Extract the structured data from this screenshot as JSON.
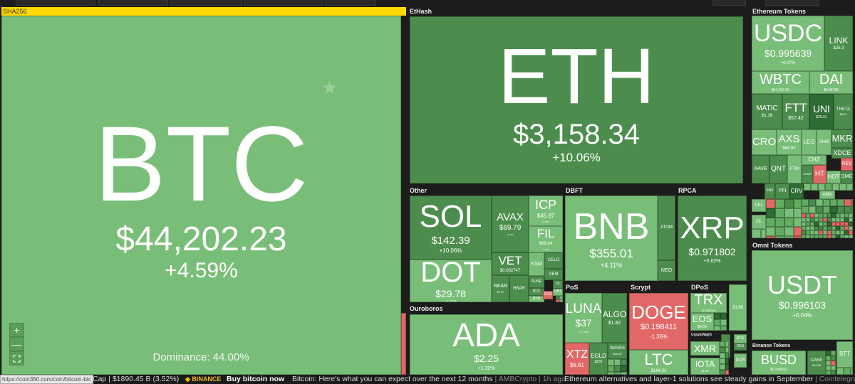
{
  "groups": {
    "sha256": "SHA256",
    "ethash": "EtHash",
    "other": "Other",
    "ouroboros": "Ouroboros",
    "dbft": "DBFT",
    "rpca": "RPCA",
    "pos": "PoS",
    "scrypt": "Scrypt",
    "dpos": "DPoS",
    "cryptonight": "CryptoNight",
    "ethereum_tokens": "Ethereum Tokens",
    "omni_tokens": "Omni Tokens",
    "binance_tokens": "Binance Tokens"
  },
  "colors": {
    "light": "#79be78",
    "mid": "#63ad62",
    "dark": "#4c8d4d",
    "darker": "#2f6b34",
    "red": "#e26868",
    "highlight": "#ffd900"
  },
  "tiles": [
    {
      "id": "btc",
      "symbol": "BTC",
      "price": "$44,202.23",
      "change": "+4.59%",
      "color": "light"
    },
    {
      "id": "eth",
      "symbol": "ETH",
      "price": "$3,158.34",
      "change": "+10.06%",
      "color": "dark"
    },
    {
      "id": "sol",
      "symbol": "SOL",
      "price": "$142.39",
      "change": "+10.06%",
      "color": "dark"
    },
    {
      "id": "dot",
      "symbol": "DOT",
      "price": "$29.78",
      "change": "+4.01%",
      "color": "light"
    },
    {
      "id": "avax",
      "symbol": "AVAX",
      "price": "$69.79",
      "change": "+6.76%",
      "color": "dark"
    },
    {
      "id": "icp",
      "symbol": "ICP",
      "price": "$45.97",
      "change": "+4.95%",
      "color": "light"
    },
    {
      "id": "fil",
      "symbol": "FIL",
      "price": "$68.64",
      "change": "+4.03%",
      "color": "light"
    },
    {
      "id": "vet",
      "symbol": "VET",
      "price": "$0.092747",
      "change": "",
      "color": "dark"
    },
    {
      "id": "near",
      "symbol": "NEAR",
      "price": "$7.67",
      "change": "",
      "color": "dark"
    },
    {
      "id": "hbar",
      "symbol": "HBAR",
      "price": "",
      "change": "",
      "color": "dark"
    },
    {
      "id": "ksm",
      "symbol": "KSM",
      "price": "",
      "change": "",
      "color": "light"
    },
    {
      "id": "celo",
      "symbol": "CELO",
      "price": "",
      "change": "",
      "color": "dark"
    },
    {
      "id": "xem",
      "symbol": "XEM",
      "price": "",
      "change": "",
      "color": "dark"
    },
    {
      "id": "rune",
      "symbol": "RUNE",
      "price": "",
      "change": "",
      "color": "dark"
    },
    {
      "id": "icx",
      "symbol": "ICX",
      "price": "",
      "change": "",
      "color": "dark"
    },
    {
      "id": "rvn",
      "symbol": "RVN",
      "price": "",
      "change": "",
      "color": "light"
    },
    {
      "id": "sc",
      "symbol": "SC",
      "price": "",
      "change": "",
      "color": "dark"
    },
    {
      "id": "ont",
      "symbol": "ONT",
      "price": "",
      "change": "",
      "color": "light"
    },
    {
      "id": "dgb",
      "symbol": "DGB",
      "price": "",
      "change": "",
      "color": "red"
    },
    {
      "id": "ada",
      "symbol": "ADA",
      "price": "$2.25",
      "change": "+1.32%",
      "color": "light"
    },
    {
      "id": "bnb",
      "symbol": "BNB",
      "price": "$355.01",
      "change": "+4.11%",
      "color": "light"
    },
    {
      "id": "atom",
      "symbol": "ATOM",
      "price": "",
      "change": "",
      "color": "dark"
    },
    {
      "id": "neo",
      "symbol": "NEO",
      "price": "",
      "change": "",
      "color": "dark"
    },
    {
      "id": "xrp",
      "symbol": "XRP",
      "price": "$0.971802",
      "change": "+5.62%",
      "color": "dark"
    },
    {
      "id": "luna",
      "symbol": "LUNA",
      "price": "$37",
      "change": "+1.73%",
      "color": "light"
    },
    {
      "id": "algo",
      "symbol": "ALGO",
      "price": "$1.82",
      "change": "",
      "color": "dark"
    },
    {
      "id": "xtz",
      "symbol": "XTZ",
      "price": "$6.61",
      "change": "",
      "color": "red"
    },
    {
      "id": "egld",
      "symbol": "EGLD",
      "price": "$231",
      "change": "",
      "color": "dark"
    },
    {
      "id": "waves",
      "symbol": "WAVES",
      "price": "$16.45",
      "change": "",
      "color": "dark"
    },
    {
      "id": "doge",
      "symbol": "DOGE",
      "price": "$0.198411",
      "change": "-1.36%",
      "color": "red"
    },
    {
      "id": "ltc",
      "symbol": "LTC",
      "price": "$164.32",
      "change": "",
      "color": "light"
    },
    {
      "id": "trx",
      "symbol": "TRX",
      "price": "$0.090008",
      "change": "",
      "color": "light"
    },
    {
      "id": "eos",
      "symbol": "EOS",
      "price": "$4.09",
      "change": "",
      "color": "light"
    },
    {
      "id": "xlm",
      "symbol": "XLM",
      "price": "",
      "change": "",
      "color": "light"
    },
    {
      "id": "xmr",
      "symbol": "XMR",
      "price": "",
      "change": "",
      "color": "light"
    },
    {
      "id": "iota",
      "symbol": "IOTA",
      "price": "$1.30",
      "change": "",
      "color": "light"
    },
    {
      "id": "zec",
      "symbol": "ZEC",
      "price": "",
      "change": "",
      "color": "dark"
    },
    {
      "id": "btg",
      "symbol": "BTG",
      "price": "",
      "change": "",
      "color": "light"
    },
    {
      "id": "zen",
      "symbol": "ZEN",
      "price": "",
      "change": "",
      "color": "dark"
    },
    {
      "id": "dcr",
      "symbol": "DCR",
      "price": "",
      "change": "",
      "color": "light"
    },
    {
      "id": "usdc",
      "symbol": "USDC",
      "price": "$0.995639",
      "change": "+0.07%",
      "color": "light"
    },
    {
      "id": "link",
      "symbol": "LINK",
      "price": "$25.3",
      "change": "",
      "color": "dark"
    },
    {
      "id": "wbtc",
      "symbol": "WBTC",
      "price": "$44,042.90",
      "change": "",
      "color": "light"
    },
    {
      "id": "dai",
      "symbol": "DAI",
      "price": "$0.99799",
      "change": "",
      "color": "light"
    },
    {
      "id": "matic",
      "symbol": "MATIC",
      "price": "$1.16",
      "change": "",
      "color": "dark"
    },
    {
      "id": "ftt",
      "symbol": "FTT",
      "price": "$57.42",
      "change": "",
      "color": "dark"
    },
    {
      "id": "uni",
      "symbol": "UNI",
      "price": "$25.51",
      "change": "",
      "color": "darker"
    },
    {
      "id": "theta",
      "symbol": "THETA",
      "price": "$5.21",
      "change": "",
      "color": "dark"
    },
    {
      "id": "cro",
      "symbol": "CRO",
      "price": "",
      "change": "",
      "color": "light"
    },
    {
      "id": "axs",
      "symbol": "AXS",
      "price": "$66.93",
      "change": "",
      "color": "light"
    },
    {
      "id": "leo",
      "symbol": "LEO",
      "price": "",
      "change": "",
      "color": "light"
    },
    {
      "id": "shib",
      "symbol": "SHIB",
      "price": "",
      "change": "",
      "color": "light"
    },
    {
      "id": "mkr",
      "symbol": "MKR",
      "price": "",
      "change": "",
      "color": "dark"
    },
    {
      "id": "xdce",
      "symbol": "XDCE",
      "price": "",
      "change": "",
      "color": "dark"
    },
    {
      "id": "aave",
      "symbol": "AAVE",
      "price": "",
      "change": "",
      "color": "dark"
    },
    {
      "id": "qnt",
      "symbol": "QNT",
      "price": "",
      "change": "",
      "color": "dark"
    },
    {
      "id": "ftm",
      "symbol": "FTM",
      "price": "",
      "change": "",
      "color": "light"
    },
    {
      "id": "chz",
      "symbol": "CHZ",
      "price": "",
      "change": "",
      "color": "light"
    },
    {
      "id": "ht",
      "symbol": "HT",
      "price": "",
      "change": "",
      "color": "red"
    },
    {
      "id": "rev",
      "symbol": "REV",
      "price": "",
      "change": "",
      "color": "red"
    },
    {
      "id": "hot",
      "symbol": "HOT",
      "price": "",
      "change": "",
      "color": "light"
    },
    {
      "id": "omg",
      "symbol": "OMG",
      "price": "",
      "change": "",
      "color": "dark"
    },
    {
      "id": "comp",
      "symbol": "COMP",
      "price": "",
      "change": "",
      "color": "dark"
    },
    {
      "id": "crv",
      "symbol": "CRV",
      "price": "",
      "change": "",
      "color": "darker"
    },
    {
      "id": "yfi",
      "symbol": "YFI",
      "price": "",
      "change": "",
      "color": "dark"
    },
    {
      "id": "snx",
      "symbol": "SNX",
      "price": "",
      "change": "",
      "color": "dark"
    },
    {
      "id": "uma",
      "symbol": "UMA",
      "price": "",
      "change": "",
      "color": "light"
    },
    {
      "id": "cel",
      "symbol": "CEL",
      "price": "",
      "change": "",
      "color": "light"
    },
    {
      "id": "zil",
      "symbol": "ZIL",
      "price": "",
      "change": "",
      "color": "light"
    },
    {
      "id": "usdt",
      "symbol": "USDT",
      "price": "$0.996103",
      "change": "+0.04%",
      "color": "light"
    },
    {
      "id": "busd",
      "symbol": "BUSD",
      "price": "$0.996652",
      "change": "",
      "color": "light"
    },
    {
      "id": "cake",
      "symbol": "CAKE",
      "price": "$18.56",
      "change": "",
      "color": "dark"
    },
    {
      "id": "btt",
      "symbol": "BTT",
      "price": "",
      "change": "",
      "color": "light"
    }
  ],
  "btc_panel": {
    "dominance": "Dominance: 44.00%"
  },
  "zoom_controls": {
    "zoom_in": "+",
    "zoom_out": "—",
    "fullscreen_icon": "fullscreen-icon"
  },
  "ticker": {
    "url_tooltip": "https://coin360.com/coin/bitcoin-btc",
    "market_cap": "Cap | $1890.45 B (3.52%)",
    "binance_logo": "BINANCE",
    "buy_label": "Buy bitcoin now",
    "news": [
      {
        "title": "Bitcoin: Here's what you can expect over the next 12 months",
        "source": "| AMBCrypto | 1h ago"
      },
      {
        "title": "Ethereum alternatives and layer-1 solutions see steady gains in September",
        "source": "| Cointelegraph"
      }
    ]
  }
}
